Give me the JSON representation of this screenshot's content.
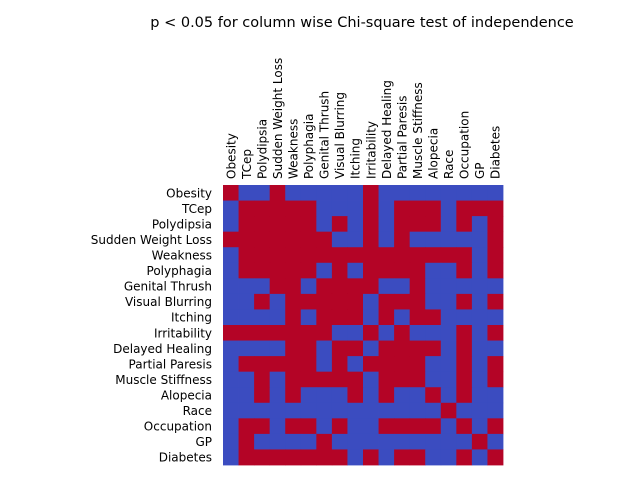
{
  "chart_data": {
    "type": "heatmap",
    "title": "p < 0.05 for column wise Chi-square test of independence",
    "xlabel": "",
    "ylabel": "",
    "grid": false,
    "legend": "none",
    "colors": {
      "true": "#b40426",
      "false": "#3b4cc0"
    },
    "x_labels": [
      "Obesity",
      "TCep",
      "Polydipsia",
      "Sudden Weight Loss",
      "Weakness",
      "Polyphagia",
      "Genital Thrush",
      "Visual Blurring",
      "Itching",
      "Irritability",
      "Delayed Healing",
      "Partial Paresis",
      "Muscle Stiffness",
      "Alopecia",
      "Race",
      "Occupation",
      "GP",
      "Diabetes"
    ],
    "y_labels": [
      "Obesity",
      "TCep",
      "Polydipsia",
      "Sudden Weight Loss",
      "Weakness",
      "Polyphagia",
      "Genital Thrush",
      "Visual Blurring",
      "Itching",
      "Irritability",
      "Delayed Healing",
      "Partial Paresis",
      "Muscle Stiffness",
      "Alopecia",
      "Race",
      "Occupation",
      "GP",
      "Diabetes"
    ],
    "values": [
      [
        1,
        0,
        0,
        1,
        0,
        0,
        0,
        0,
        0,
        1,
        0,
        0,
        0,
        0,
        0,
        0,
        0,
        0
      ],
      [
        0,
        1,
        1,
        1,
        1,
        1,
        0,
        0,
        0,
        1,
        0,
        1,
        1,
        1,
        0,
        1,
        1,
        1
      ],
      [
        0,
        1,
        1,
        1,
        1,
        1,
        0,
        1,
        0,
        1,
        0,
        1,
        1,
        1,
        0,
        1,
        0,
        1
      ],
      [
        1,
        1,
        1,
        1,
        1,
        1,
        1,
        0,
        0,
        1,
        0,
        1,
        0,
        0,
        0,
        0,
        0,
        1
      ],
      [
        0,
        1,
        1,
        1,
        1,
        1,
        1,
        1,
        1,
        1,
        1,
        1,
        1,
        1,
        1,
        1,
        0,
        1
      ],
      [
        0,
        1,
        1,
        1,
        1,
        1,
        0,
        1,
        0,
        1,
        1,
        1,
        1,
        0,
        0,
        1,
        0,
        1
      ],
      [
        0,
        0,
        0,
        1,
        1,
        0,
        1,
        1,
        1,
        1,
        0,
        0,
        1,
        0,
        0,
        0,
        0,
        0
      ],
      [
        0,
        0,
        1,
        0,
        1,
        1,
        1,
        1,
        1,
        0,
        1,
        1,
        1,
        0,
        0,
        1,
        0,
        1
      ],
      [
        0,
        0,
        0,
        0,
        1,
        0,
        1,
        1,
        1,
        0,
        1,
        0,
        1,
        1,
        0,
        0,
        0,
        0
      ],
      [
        1,
        1,
        1,
        1,
        1,
        1,
        1,
        0,
        0,
        1,
        0,
        1,
        0,
        0,
        0,
        1,
        0,
        1
      ],
      [
        0,
        0,
        0,
        0,
        1,
        1,
        0,
        1,
        1,
        0,
        1,
        1,
        1,
        1,
        0,
        1,
        0,
        0
      ],
      [
        0,
        1,
        1,
        1,
        1,
        1,
        0,
        1,
        0,
        1,
        1,
        1,
        1,
        0,
        0,
        1,
        0,
        1
      ],
      [
        0,
        0,
        1,
        0,
        1,
        1,
        1,
        1,
        1,
        0,
        1,
        1,
        1,
        0,
        0,
        1,
        0,
        1
      ],
      [
        0,
        0,
        1,
        0,
        1,
        0,
        0,
        0,
        1,
        0,
        1,
        0,
        0,
        1,
        0,
        1,
        0,
        0
      ],
      [
        0,
        0,
        0,
        0,
        0,
        0,
        0,
        0,
        0,
        0,
        0,
        0,
        0,
        0,
        1,
        0,
        0,
        0
      ],
      [
        0,
        1,
        1,
        0,
        1,
        1,
        0,
        1,
        0,
        0,
        1,
        1,
        1,
        1,
        0,
        1,
        0,
        1
      ],
      [
        0,
        1,
        0,
        0,
        0,
        0,
        1,
        0,
        0,
        0,
        0,
        0,
        0,
        0,
        0,
        0,
        1,
        0
      ],
      [
        0,
        1,
        1,
        1,
        1,
        1,
        1,
        1,
        0,
        1,
        0,
        1,
        1,
        0,
        0,
        1,
        0,
        1
      ]
    ]
  }
}
